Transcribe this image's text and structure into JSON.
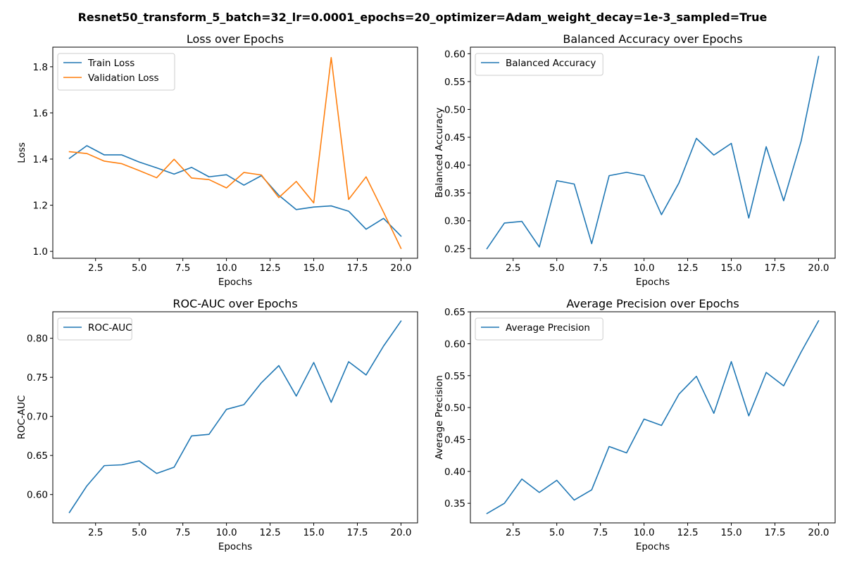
{
  "figure": {
    "suptitle": "Resnet50_transform_5_batch=32_lr=0.0001_epochs=20_optimizer=Adam_weight_decay=1e-3_sampled=True"
  },
  "colors": {
    "blue": "#1f77b4",
    "orange": "#ff7f0e"
  },
  "chart_data": [
    {
      "type": "line",
      "title": "Loss over Epochs",
      "xlabel": "Epochs",
      "ylabel": "Loss",
      "x": [
        1,
        2,
        3,
        4,
        5,
        6,
        7,
        8,
        9,
        10,
        11,
        12,
        13,
        14,
        15,
        16,
        17,
        18,
        19,
        20
      ],
      "xlim": [
        0.05,
        20.95
      ],
      "ylim": [
        0.97,
        1.885
      ],
      "xticks": [
        2.5,
        5.0,
        7.5,
        10.0,
        12.5,
        15.0,
        17.5,
        20.0
      ],
      "xtick_labels": [
        "2.5",
        "5.0",
        "7.5",
        "10.0",
        "12.5",
        "15.0",
        "17.5",
        "20.0"
      ],
      "yticks": [
        1.0,
        1.2,
        1.4,
        1.6,
        1.8
      ],
      "ytick_labels": [
        "1.0",
        "1.2",
        "1.4",
        "1.6",
        "1.8"
      ],
      "legend": "top-left",
      "grid": false,
      "series": [
        {
          "name": "Train Loss",
          "color": "#1f77b4",
          "values": [
            1.403,
            1.458,
            1.418,
            1.418,
            1.387,
            1.362,
            1.335,
            1.364,
            1.323,
            1.332,
            1.287,
            1.328,
            1.243,
            1.181,
            1.192,
            1.197,
            1.174,
            1.096,
            1.143,
            1.066
          ]
        },
        {
          "name": "Validation Loss",
          "color": "#ff7f0e",
          "values": [
            1.432,
            1.424,
            1.391,
            1.38,
            1.35,
            1.319,
            1.399,
            1.318,
            1.311,
            1.275,
            1.342,
            1.331,
            1.233,
            1.303,
            1.21,
            1.84,
            1.225,
            1.323,
            1.17,
            1.013
          ]
        }
      ]
    },
    {
      "type": "line",
      "title": "Balanced Accuracy over Epochs",
      "xlabel": "Epochs",
      "ylabel": "Balanced Accuracy",
      "x": [
        1,
        2,
        3,
        4,
        5,
        6,
        7,
        8,
        9,
        10,
        11,
        12,
        13,
        14,
        15,
        16,
        17,
        18,
        19,
        20
      ],
      "xlim": [
        0.05,
        20.95
      ],
      "ylim": [
        0.2327,
        0.6118
      ],
      "xticks": [
        2.5,
        5.0,
        7.5,
        10.0,
        12.5,
        15.0,
        17.5,
        20.0
      ],
      "xtick_labels": [
        "2.5",
        "5.0",
        "7.5",
        "10.0",
        "12.5",
        "15.0",
        "17.5",
        "20.0"
      ],
      "yticks": [
        0.25,
        0.3,
        0.35,
        0.4,
        0.45,
        0.5,
        0.55,
        0.6
      ],
      "ytick_labels": [
        "0.25",
        "0.30",
        "0.35",
        "0.40",
        "0.45",
        "0.50",
        "0.55",
        "0.60"
      ],
      "legend": "top-left",
      "grid": false,
      "series": [
        {
          "name": "Balanced Accuracy",
          "color": "#1f77b4",
          "values": [
            0.25,
            0.296,
            0.299,
            0.253,
            0.372,
            0.366,
            0.259,
            0.381,
            0.387,
            0.381,
            0.311,
            0.368,
            0.448,
            0.418,
            0.439,
            0.305,
            0.433,
            0.336,
            0.443,
            0.595
          ]
        }
      ]
    },
    {
      "type": "line",
      "title": "ROC-AUC over Epochs",
      "xlabel": "Epochs",
      "ylabel": "ROC-AUC",
      "x": [
        1,
        2,
        3,
        4,
        5,
        6,
        7,
        8,
        9,
        10,
        11,
        12,
        13,
        14,
        15,
        16,
        17,
        18,
        19,
        20
      ],
      "xlim": [
        0.05,
        20.95
      ],
      "ylim": [
        0.5637,
        0.8339
      ],
      "xticks": [
        2.5,
        5.0,
        7.5,
        10.0,
        12.5,
        15.0,
        17.5,
        20.0
      ],
      "xtick_labels": [
        "2.5",
        "5.0",
        "7.5",
        "10.0",
        "12.5",
        "15.0",
        "17.5",
        "20.0"
      ],
      "yticks": [
        0.6,
        0.65,
        0.7,
        0.75,
        0.8
      ],
      "ytick_labels": [
        "0.60",
        "0.65",
        "0.70",
        "0.75",
        "0.80"
      ],
      "legend": "top-left",
      "grid": false,
      "series": [
        {
          "name": "ROC-AUC",
          "color": "#1f77b4",
          "values": [
            0.577,
            0.611,
            0.637,
            0.638,
            0.643,
            0.627,
            0.635,
            0.675,
            0.677,
            0.709,
            0.715,
            0.743,
            0.765,
            0.726,
            0.769,
            0.718,
            0.77,
            0.753,
            0.79,
            0.822
          ]
        }
      ]
    },
    {
      "type": "line",
      "title": "Average Precision over Epochs",
      "xlabel": "Epochs",
      "ylabel": "Average Precision",
      "x": [
        1,
        2,
        3,
        4,
        5,
        6,
        7,
        8,
        9,
        10,
        11,
        12,
        13,
        14,
        15,
        16,
        17,
        18,
        19,
        20
      ],
      "xlim": [
        0.05,
        20.95
      ],
      "ylim": [
        0.3193,
        0.6501
      ],
      "xticks": [
        2.5,
        5.0,
        7.5,
        10.0,
        12.5,
        15.0,
        17.5,
        20.0
      ],
      "xtick_labels": [
        "2.5",
        "5.0",
        "7.5",
        "10.0",
        "12.5",
        "15.0",
        "17.5",
        "20.0"
      ],
      "yticks": [
        0.35,
        0.4,
        0.45,
        0.5,
        0.55,
        0.6,
        0.65
      ],
      "ytick_labels": [
        "0.35",
        "0.40",
        "0.45",
        "0.50",
        "0.55",
        "0.60",
        "0.65"
      ],
      "legend": "top-left",
      "grid": false,
      "series": [
        {
          "name": "Average Precision",
          "color": "#1f77b4",
          "values": [
            0.334,
            0.35,
            0.388,
            0.367,
            0.386,
            0.355,
            0.371,
            0.439,
            0.429,
            0.482,
            0.472,
            0.521,
            0.549,
            0.491,
            0.572,
            0.487,
            0.555,
            0.534,
            0.587,
            0.636
          ]
        }
      ]
    }
  ]
}
